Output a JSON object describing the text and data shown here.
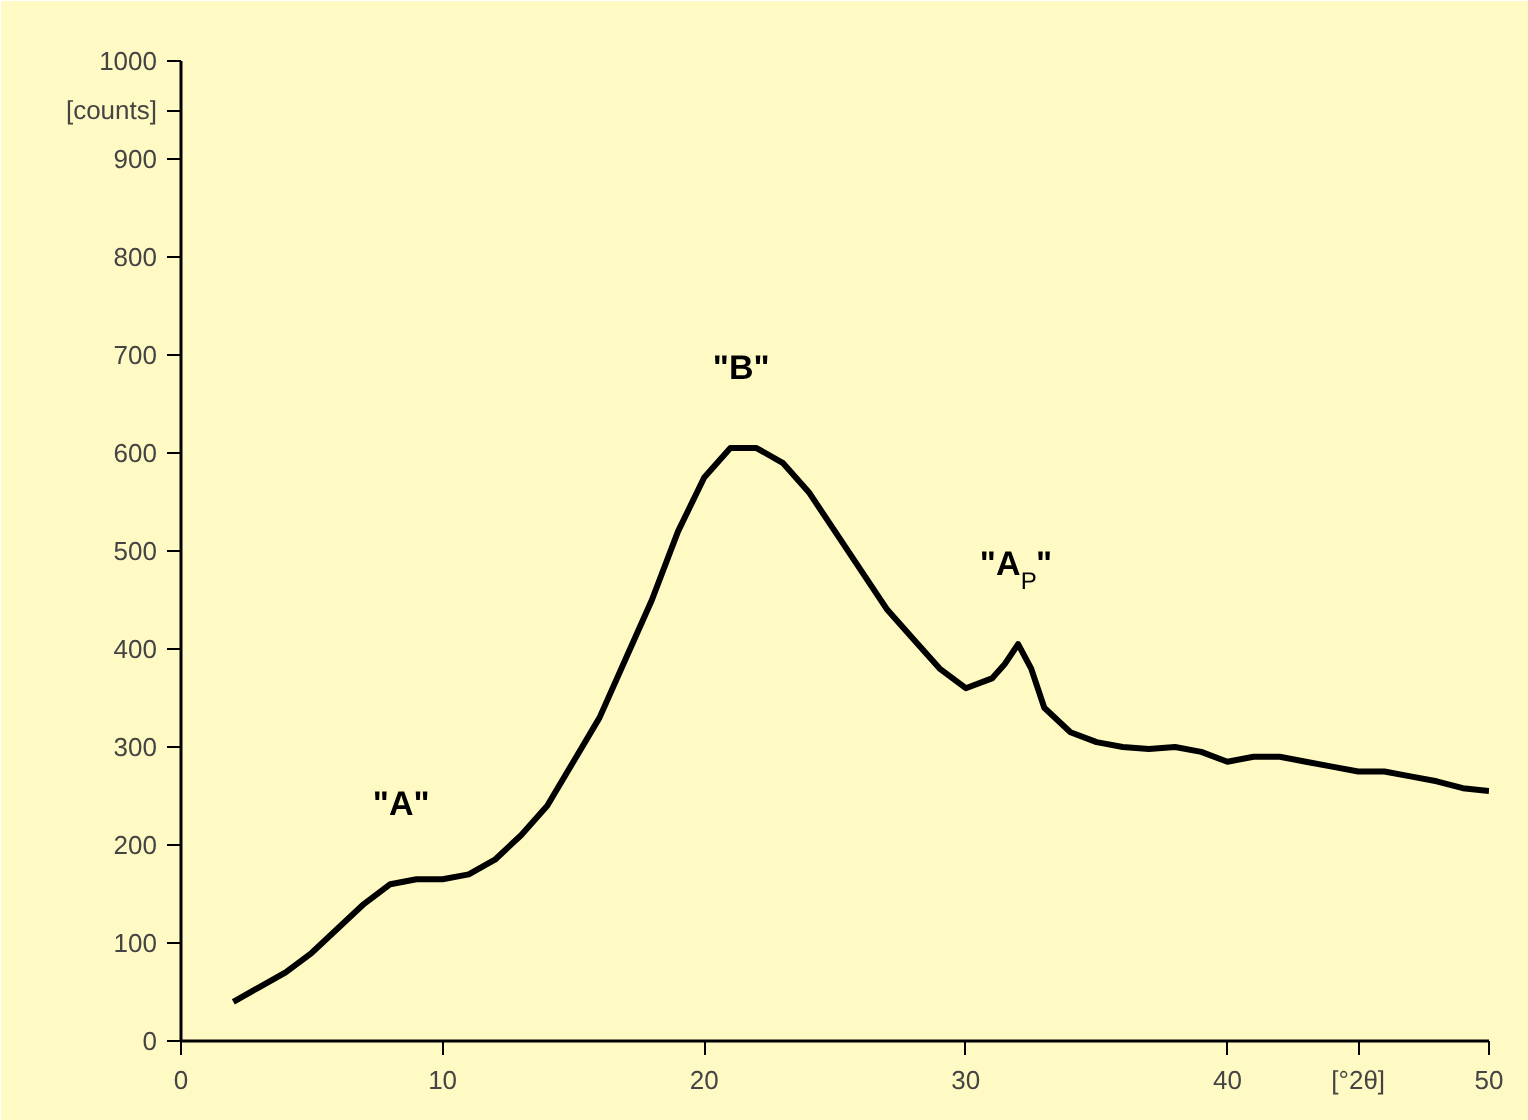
{
  "chart_data": {
    "type": "line",
    "x": [
      2,
      3,
      4,
      5,
      6,
      7,
      8,
      9,
      10,
      11,
      12,
      13,
      14,
      15,
      16,
      17,
      18,
      19,
      20,
      21,
      22,
      23,
      24,
      25,
      26,
      27,
      28,
      29,
      30,
      31,
      31.5,
      32,
      32.5,
      33,
      34,
      35,
      36,
      37,
      38,
      39,
      40,
      41,
      42,
      43,
      44,
      45,
      46,
      47,
      48,
      49,
      50
    ],
    "series": [
      {
        "color": "#000000",
        "values": [
          40,
          55,
          70,
          90,
          115,
          140,
          160,
          165,
          165,
          170,
          185,
          210,
          240,
          285,
          330,
          390,
          450,
          520,
          575,
          605,
          605,
          590,
          560,
          520,
          480,
          440,
          410,
          380,
          360,
          370,
          385,
          405,
          380,
          340,
          315,
          305,
          300,
          298,
          300,
          295,
          285,
          290,
          290,
          285,
          280,
          275,
          275,
          270,
          265,
          258,
          255
        ]
      }
    ],
    "xlim": [
      0,
      50
    ],
    "ylim": [
      0,
      1000
    ],
    "xticks": [
      0,
      10,
      20,
      30,
      40,
      50
    ],
    "yticks": [
      0,
      100,
      200,
      300,
      400,
      500,
      600,
      700,
      800,
      900,
      1000
    ],
    "xlabel": "[°2θ]",
    "ylabel": "[counts]",
    "grid": false,
    "marker": "none",
    "line_style": "solid",
    "annotations": [
      {
        "text": "\"A\"",
        "x": 8.5,
        "y": 165
      },
      {
        "text": "\"B\"",
        "x": 21.5,
        "y": 610
      },
      {
        "text": "\"A$_{P}$\"",
        "x": 32,
        "y": 410
      }
    ]
  }
}
